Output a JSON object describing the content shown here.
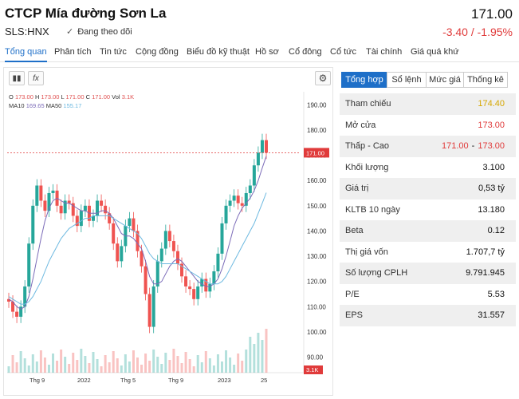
{
  "header": {
    "company_name": "CTCP Mía đường Sơn La",
    "ticker": "SLS:HNX",
    "follow_label": "Đang theo dõi",
    "price": "171.00",
    "change": "-3.40 / -1.95%"
  },
  "tabs": [
    {
      "label": "Tổng quan"
    },
    {
      "label": "Phân tích"
    },
    {
      "label": "Tin tức"
    },
    {
      "label": "Cộng đồng"
    },
    {
      "label": "Biểu đồ kỹ thuật"
    },
    {
      "label": "Hồ sơ"
    },
    {
      "label": "Cổ đông"
    },
    {
      "label": "Cổ tức"
    },
    {
      "label": "Tài chính"
    },
    {
      "label": "Giá quá khứ"
    }
  ],
  "chart": {
    "ohlc": {
      "o_label": "O",
      "o": "173.00",
      "h_label": "H",
      "h": "173.00",
      "l_label": "L",
      "l": "171.00",
      "c_label": "C",
      "c": "171.00",
      "vol_label": "Vol",
      "vol": "3.1K"
    },
    "ma": {
      "ma10_label": "MA10",
      "ma10": "169.65",
      "ma50_label": "MA50",
      "ma50": "155.17"
    },
    "colors": {
      "up": "#26a69a",
      "down": "#ef5350",
      "ma10": "#7b6bb8",
      "ma50": "#6db9e0",
      "price_line": "#e03b3b"
    }
  },
  "chart_data": {
    "type": "line",
    "y_ticks": [
      "190.00",
      "180.00",
      "170.00",
      "160.00",
      "150.00",
      "140.00",
      "130.00",
      "120.00",
      "110.00",
      "100.00",
      "90.00"
    ],
    "ylim": [
      87,
      192
    ],
    "x_ticks": [
      "Thg 9",
      "2022",
      "Thg 5",
      "Thg 9",
      "2023",
      "25"
    ],
    "last_price_label": "171.00",
    "last_price": 171,
    "volume_label": "3.1K",
    "series": [
      {
        "name": "Close",
        "values": [
          112,
          108,
          106,
          110,
          118,
          135,
          150,
          158,
          152,
          148,
          155,
          156,
          150,
          147,
          152,
          151,
          146,
          142,
          148,
          150,
          144,
          146,
          152,
          150,
          147,
          143,
          135,
          128,
          134,
          142,
          145,
          140,
          132,
          126,
          115,
          102,
          118,
          128,
          133,
          140,
          136,
          132,
          127,
          122,
          118,
          117,
          113,
          118,
          121,
          116,
          119,
          124,
          131,
          143,
          150,
          152,
          154,
          151,
          150,
          155,
          158,
          166,
          171,
          176,
          171
        ]
      },
      {
        "name": "MA10",
        "values": [
          113,
          112,
          110,
          109,
          110,
          114,
          121,
          129,
          137,
          144,
          149,
          152,
          153,
          152,
          151,
          151,
          150,
          149,
          148,
          148,
          147,
          147,
          147,
          148,
          148,
          147,
          145,
          142,
          139,
          138,
          138,
          137,
          135,
          133,
          128,
          122,
          119,
          119,
          120,
          123,
          126,
          128,
          129,
          128,
          126,
          124,
          122,
          120,
          119,
          118,
          118,
          119,
          121,
          125,
          130,
          136,
          142,
          146,
          149,
          151,
          153,
          156,
          160,
          165,
          169.65
        ]
      },
      {
        "name": "MA50",
        "values": [
          114,
          113,
          112,
          111,
          111,
          112,
          114,
          117,
          120,
          124,
          128,
          131,
          134,
          137,
          139,
          141,
          142,
          143,
          144,
          145,
          145,
          146,
          146,
          146,
          146,
          146,
          145,
          144,
          143,
          142,
          141,
          140,
          139,
          137,
          134,
          131,
          129,
          128,
          127,
          127,
          127,
          127,
          127,
          126,
          125,
          124,
          123,
          122,
          121,
          120,
          119,
          119,
          119,
          120,
          122,
          125,
          128,
          131,
          134,
          137,
          140,
          143,
          147,
          151,
          155.17
        ]
      }
    ]
  },
  "right_panel": {
    "tabs": [
      {
        "label": "Tổng hợp"
      },
      {
        "label": "Sổ lệnh"
      },
      {
        "label": "Mức giá"
      },
      {
        "label": "Thống kê"
      }
    ],
    "rows": [
      {
        "label": "Tham chiếu",
        "value": "174.40"
      },
      {
        "label": "Mở cửa",
        "value": "173.00"
      },
      {
        "label": "Thấp - Cao",
        "low": "171.00",
        "sep": "-",
        "high": "173.00"
      },
      {
        "label": "Khối lượng",
        "value": "3.100"
      },
      {
        "label": "Giá trị",
        "value": "0,53 tỷ"
      },
      {
        "label": "KLTB 10 ngày",
        "value": "13.180"
      },
      {
        "label": "Beta",
        "value": "0.12"
      },
      {
        "label": "Thị giá vốn",
        "value": "1.707,7 tỷ"
      },
      {
        "label": "Số lượng CPLH",
        "value": "9.791.945"
      },
      {
        "label": "P/E",
        "value": "5.53"
      },
      {
        "label": "EPS",
        "value": "31.557"
      }
    ]
  }
}
